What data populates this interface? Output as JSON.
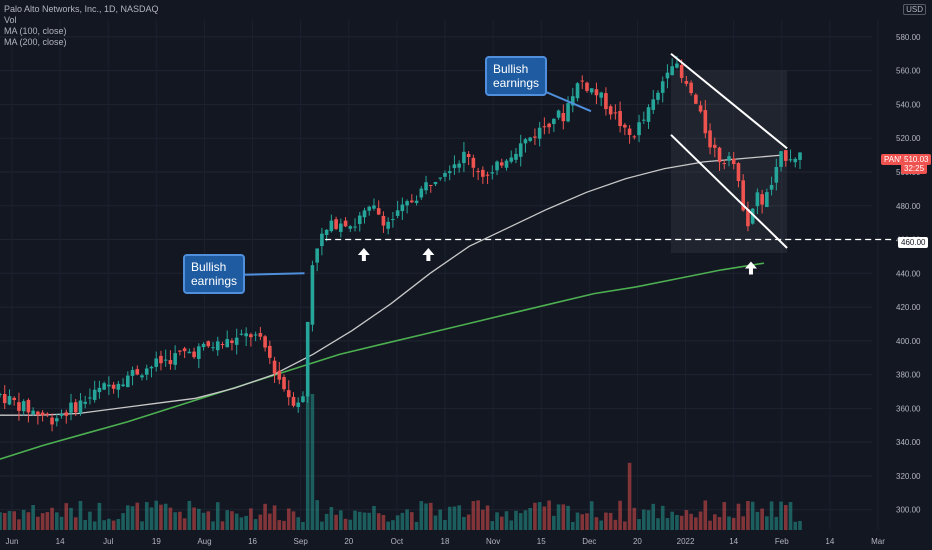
{
  "legend": {
    "title": "Palo Alto Networks, Inc., 1D, NASDAQ",
    "vol": "Vol",
    "ma100": "MA (100, close)",
    "ma200": "MA (200, close)"
  },
  "currency_label": "USD",
  "ticker_badge": "PANW",
  "price_badge": "510.03",
  "countdown_badge": "32:25",
  "level_badge": "460.00",
  "callouts": {
    "first": [
      "Bullish",
      "earnings"
    ],
    "second": [
      "Bullish",
      "earnings"
    ]
  },
  "colors": {
    "background": "#131722",
    "up": "#26a69a",
    "down": "#ef5350",
    "ma100": "#c8c8c8",
    "ma200": "#4caf50",
    "callout_fill": "#1e5ba0",
    "callout_border": "#4f8fdc"
  },
  "chart_data": {
    "type": "candlestick",
    "title": "Palo Alto Networks, Inc., 1D, NASDAQ",
    "y_axis": {
      "ticks": [
        300,
        320,
        340,
        360,
        380,
        400,
        420,
        440,
        460,
        480,
        500,
        520,
        540,
        560,
        580
      ],
      "ylim": [
        288,
        590
      ]
    },
    "x_axis": {
      "tick_labels": [
        "Jun",
        "14",
        "Jul",
        "19",
        "Aug",
        "16",
        "Sep",
        "20",
        "Oct",
        "18",
        "Nov",
        "15",
        "Dec",
        "20",
        "2022",
        "14",
        "Feb",
        "14",
        "Mar"
      ]
    },
    "last_price": 510.03,
    "horizontal_level": 460,
    "channel": {
      "upper": [
        [
          570,
          514
        ]
      ],
      "lower": [
        [
          522,
          455
        ]
      ]
    },
    "series": [
      {
        "name": "MA (100, close)",
        "values": [
          356,
          356,
          357,
          360,
          363,
          366,
          372,
          380,
          392,
          406,
          422,
          440,
          456,
          467,
          478,
          488,
          496,
          502,
          506,
          508,
          510
        ]
      },
      {
        "name": "MA (200, close)",
        "values": [
          330,
          338,
          345,
          352,
          360,
          368,
          376,
          384,
          392,
          398,
          404,
          410,
          416,
          422,
          428,
          432,
          437,
          442,
          446
        ]
      }
    ],
    "price_path": [
      [
        0,
        368
      ],
      [
        10,
        360
      ],
      [
        20,
        354
      ],
      [
        30,
        362
      ],
      [
        40,
        372
      ],
      [
        50,
        380
      ],
      [
        60,
        386
      ],
      [
        70,
        392
      ],
      [
        80,
        396
      ],
      [
        90,
        400
      ],
      [
        98,
        404
      ],
      [
        103,
        395
      ],
      [
        108,
        378
      ],
      [
        113,
        365
      ],
      [
        118,
        366
      ],
      [
        120,
        440
      ],
      [
        123,
        458
      ],
      [
        126,
        464
      ],
      [
        130,
        470
      ],
      [
        133,
        472
      ],
      [
        137,
        468
      ],
      [
        140,
        474
      ],
      [
        145,
        478
      ],
      [
        150,
        470
      ],
      [
        155,
        476
      ],
      [
        160,
        484
      ],
      [
        165,
        492
      ],
      [
        170,
        500
      ],
      [
        175,
        505
      ],
      [
        180,
        510
      ],
      [
        185,
        502
      ],
      [
        190,
        496
      ],
      [
        195,
        508
      ],
      [
        200,
        514
      ],
      [
        205,
        520
      ],
      [
        210,
        526
      ],
      [
        215,
        534
      ],
      [
        218,
        532
      ],
      [
        222,
        548
      ],
      [
        225,
        554
      ],
      [
        230,
        548
      ],
      [
        235,
        540
      ],
      [
        240,
        530
      ],
      [
        243,
        520
      ],
      [
        246,
        524
      ],
      [
        250,
        532
      ],
      [
        255,
        546
      ],
      [
        258,
        560
      ],
      [
        260,
        568
      ],
      [
        265,
        552
      ],
      [
        268,
        546
      ],
      [
        272,
        530
      ],
      [
        275,
        518
      ],
      [
        280,
        505
      ],
      [
        283,
        515
      ],
      [
        286,
        492
      ],
      [
        290,
        470
      ],
      [
        293,
        486
      ],
      [
        296,
        482
      ],
      [
        300,
        496
      ],
      [
        303,
        510
      ]
    ],
    "volume_spikes": [
      [
        120,
        0.85
      ],
      [
        244,
        0.42
      ]
    ],
    "annotations": [
      {
        "type": "arrow-up",
        "x": 141,
        "y": 455
      },
      {
        "type": "arrow-up",
        "x": 166,
        "y": 455
      },
      {
        "type": "arrow-up",
        "x": 291,
        "y": 447
      },
      {
        "type": "callout",
        "text": "Bullish earnings",
        "x": 118,
        "y": 440
      },
      {
        "type": "callout",
        "text": "Bullish earnings",
        "x": 229,
        "y": 536
      }
    ],
    "price_range_x": [
      0,
      310
    ]
  }
}
